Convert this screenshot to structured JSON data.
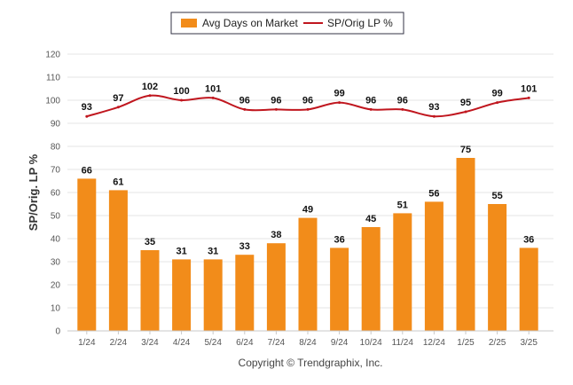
{
  "chart_data": {
    "type": "bar",
    "categories": [
      "1/24",
      "2/24",
      "3/24",
      "4/24",
      "5/24",
      "6/24",
      "7/24",
      "8/24",
      "9/24",
      "10/24",
      "11/24",
      "12/24",
      "1/25",
      "2/25",
      "3/25"
    ],
    "series": [
      {
        "name": "Avg Days on Market",
        "type": "bar",
        "color": "#f28c1a",
        "values": [
          66,
          61,
          35,
          31,
          31,
          33,
          38,
          49,
          36,
          45,
          51,
          56,
          75,
          55,
          36
        ]
      },
      {
        "name": "SP/Orig LP %",
        "type": "line",
        "color": "#c0161e",
        "values": [
          93,
          97,
          102,
          100,
          101,
          96,
          96,
          96,
          99,
          96,
          96,
          93,
          95,
          99,
          101
        ]
      }
    ],
    "ylabel": "SP/Orig. LP %",
    "ylim": [
      0,
      120
    ],
    "yticks": [
      0,
      10,
      20,
      30,
      40,
      50,
      60,
      70,
      80,
      90,
      100,
      110,
      120
    ],
    "grid": true,
    "legend_position": "top-center",
    "credit": "Copyright © Trendgraphix, Inc."
  }
}
